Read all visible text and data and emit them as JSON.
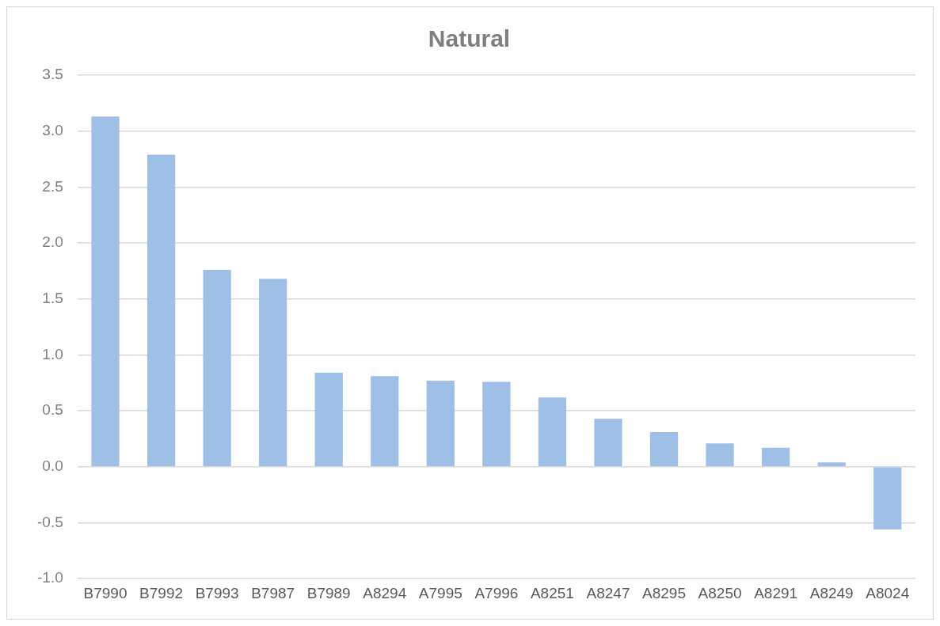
{
  "chart_data": {
    "type": "bar",
    "title": "Natural",
    "categories": [
      "B7990",
      "B7992",
      "B7993",
      "B7987",
      "B7989",
      "A8294",
      "A7995",
      "A7996",
      "A8251",
      "A8247",
      "A8295",
      "A8250",
      "A8291",
      "A8249",
      "A8024"
    ],
    "values": [
      3.13,
      2.79,
      1.76,
      1.68,
      0.84,
      0.81,
      0.77,
      0.76,
      0.62,
      0.43,
      0.31,
      0.21,
      0.17,
      0.04,
      -0.56
    ],
    "color": "#9fc0e6",
    "ylim": [
      -1.0,
      3.5
    ],
    "yticks": [
      {
        "value": -1,
        "label": "-1.0"
      },
      {
        "value": -0.5,
        "label": "-0.5"
      },
      {
        "value": 0,
        "label": "0.0"
      },
      {
        "value": 0.5,
        "label": "0.5"
      },
      {
        "value": 1,
        "label": "1.0"
      },
      {
        "value": 1.5,
        "label": "1.5"
      },
      {
        "value": 2,
        "label": "2.0"
      },
      {
        "value": 2.5,
        "label": "2.5"
      },
      {
        "value": 3,
        "label": "3.0"
      },
      {
        "value": 3.5,
        "label": "3.5"
      }
    ],
    "grid": "y",
    "legend": false
  }
}
